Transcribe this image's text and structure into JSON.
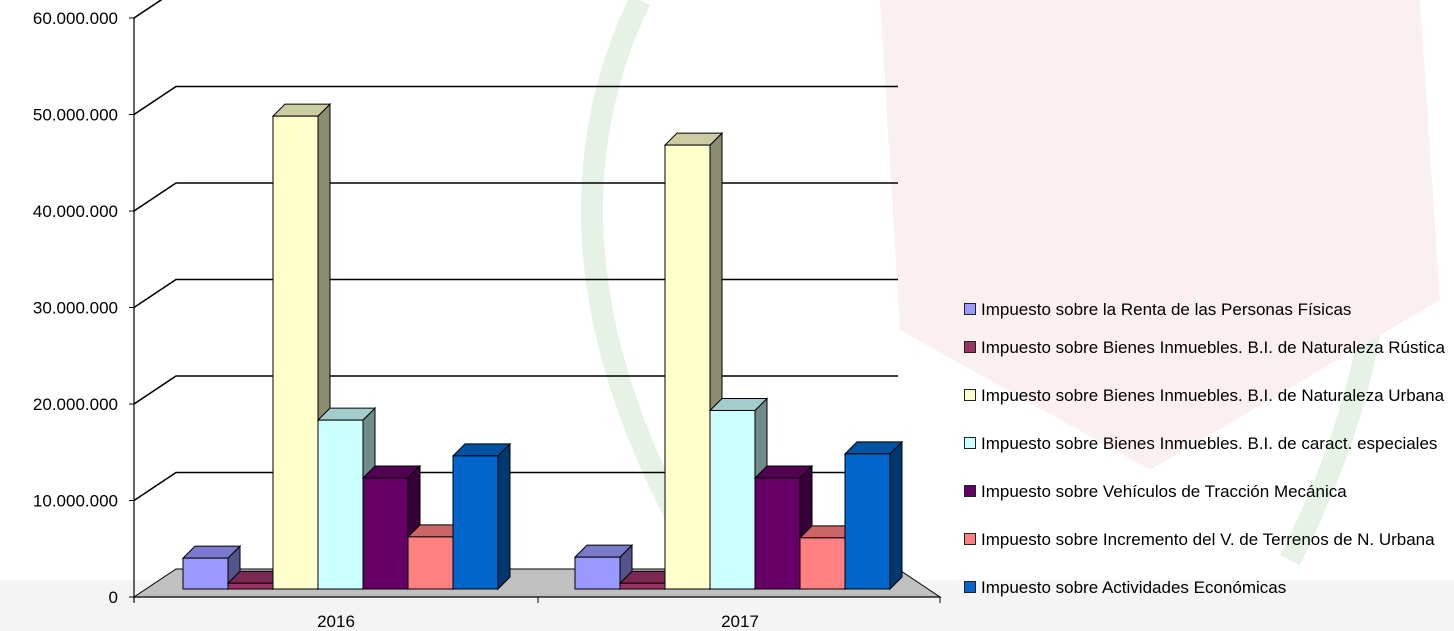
{
  "chart_data": {
    "type": "bar",
    "view": "3d-clustered",
    "categories": [
      "2016",
      "2017"
    ],
    "series": [
      {
        "name": "Impuesto sobre la Renta de las Personas Físicas",
        "color": "#9999ff",
        "values": [
          3200000,
          3300000
        ]
      },
      {
        "name": "Impuesto sobre Bienes Inmuebles. B.I. de Naturaleza Rústica",
        "color": "#993366",
        "values": [
          600000,
          600000
        ]
      },
      {
        "name": "Impuesto sobre Bienes Inmuebles. B.I. de Naturaleza Urbana",
        "color": "#ffffcc",
        "values": [
          49000000,
          46000000
        ]
      },
      {
        "name": "Impuesto sobre Bienes Inmuebles. B.I. de caract. especiales",
        "color": "#ccffff",
        "values": [
          17500000,
          18500000
        ]
      },
      {
        "name": "Impuesto sobre Vehículos de Tracción Mecánica",
        "color": "#660066",
        "values": [
          11500000,
          11500000
        ]
      },
      {
        "name": "Impuesto sobre Incremento del V. de Terrenos de N. Urbana",
        "color": "#ff8080",
        "values": [
          5400000,
          5300000
        ]
      },
      {
        "name": "Impuesto sobre Actividades Económicas",
        "color": "#0066cc",
        "values": [
          13800000,
          14000000
        ]
      }
    ],
    "y_ticks": [
      "0",
      "10.000.000",
      "20.000.000",
      "30.000.000",
      "40.000.000",
      "50.000.000",
      "60.000.000"
    ],
    "ylim": [
      0,
      60000000
    ],
    "grid": true,
    "legend": "right"
  }
}
